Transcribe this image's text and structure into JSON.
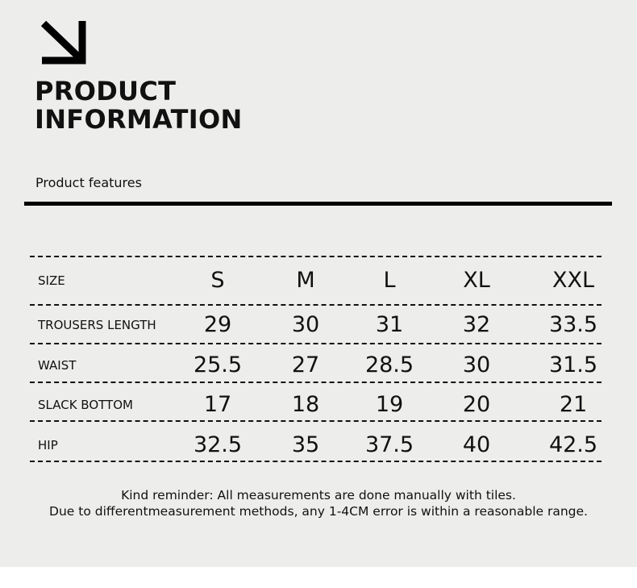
{
  "header": {
    "icon": "arrow-down-right-icon",
    "title_line1": "PRODUCT",
    "title_line2": "INFORMATION",
    "subtitle": "Product features"
  },
  "table": {
    "header": {
      "label": "SIZE",
      "sizes": [
        "S",
        "M",
        "L",
        "XL",
        "XXL"
      ]
    },
    "rows": [
      {
        "label": "TROUSERS LENGTH",
        "values": [
          "29",
          "30",
          "31",
          "32",
          "33.5"
        ]
      },
      {
        "label": "WAIST",
        "values": [
          "25.5",
          "27",
          "28.5",
          "30",
          "31.5"
        ]
      },
      {
        "label": "SLACK BOTTOM",
        "values": [
          "17",
          "18",
          "19",
          "20",
          "21"
        ]
      },
      {
        "label": "HIP",
        "values": [
          "32.5",
          "35",
          "37.5",
          "40",
          "42.5"
        ]
      }
    ]
  },
  "notes": [
    "Kind reminder: All measurements are done manually with tiles.",
    "Due to differentmeasurement methods, any 1-4CM error is within a reasonable range."
  ]
}
